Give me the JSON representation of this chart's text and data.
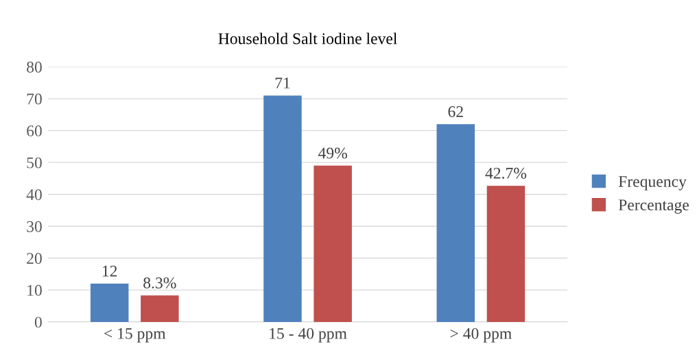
{
  "chart_data": {
    "type": "bar",
    "title": "Household Salt iodine level",
    "categories": [
      "< 15 ppm",
      "15 - 40 ppm",
      "> 40 ppm"
    ],
    "series": [
      {
        "name": "Frequency",
        "color": "#4f81bd",
        "values": [
          12,
          71,
          62
        ],
        "value_labels": [
          "12",
          "71",
          "62"
        ]
      },
      {
        "name": "Percentage",
        "color": "#c0504d",
        "values": [
          8.3,
          49,
          42.7
        ],
        "value_labels": [
          "8.3%",
          "49%",
          "42.7%"
        ]
      }
    ],
    "ylim": [
      0,
      80
    ],
    "yticks": [
      0,
      10,
      20,
      30,
      40,
      50,
      60,
      70,
      80
    ],
    "grid": "y",
    "legend": "right"
  }
}
